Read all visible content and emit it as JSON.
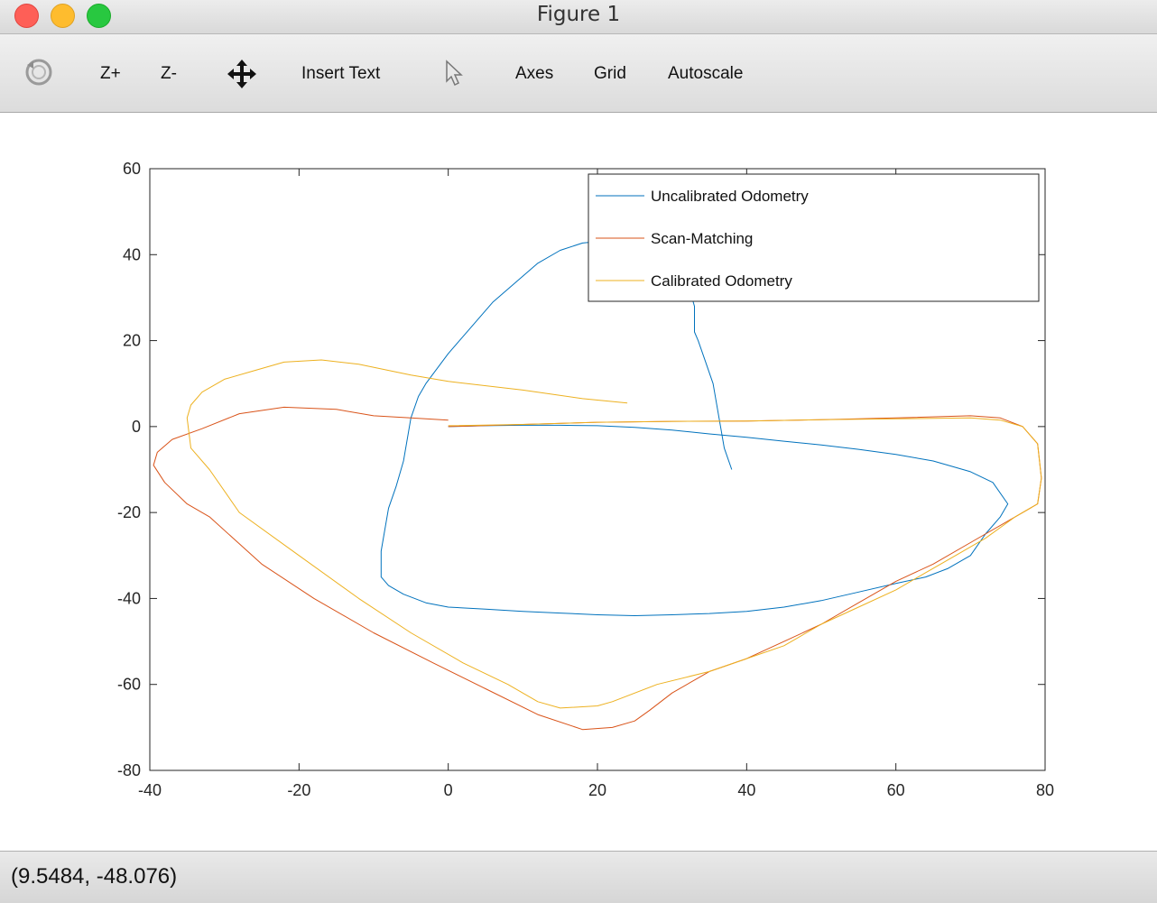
{
  "window": {
    "title": "Figure 1"
  },
  "toolbar": {
    "zoom_in": "Z+",
    "zoom_out": "Z-",
    "insert_text": "Insert Text",
    "axes": "Axes",
    "grid": "Grid",
    "autoscale": "Autoscale"
  },
  "status": {
    "coords": "(9.5484, -48.076)"
  },
  "colors": {
    "uncalibrated": "#0072bd",
    "scan_matching": "#d95319",
    "calibrated": "#edb120"
  },
  "chart_data": {
    "type": "line",
    "title": "",
    "xlabel": "",
    "ylabel": "",
    "xlim": [
      -40,
      80
    ],
    "ylim": [
      -80,
      60
    ],
    "xticks": [
      "-40",
      "-20",
      "0",
      "20",
      "40",
      "60",
      "80"
    ],
    "yticks": [
      "60",
      "40",
      "20",
      "0",
      "-20",
      "-40",
      "-60",
      "-80"
    ],
    "grid": false,
    "legend_position": "top-right",
    "series": [
      {
        "name": "Uncalibrated Odometry",
        "x": [
          0,
          5,
          10,
          15,
          20,
          25,
          30,
          35,
          40,
          45,
          50,
          55,
          60,
          65,
          70,
          73,
          75,
          74,
          72,
          70,
          67,
          64,
          60,
          55,
          50,
          45,
          40,
          35,
          30,
          25,
          20,
          15,
          10,
          5,
          0,
          -3,
          -6,
          -8,
          -9,
          -9,
          -8,
          -7,
          -6,
          -5,
          -4,
          -3,
          0,
          3,
          6,
          9,
          12,
          15,
          18,
          21,
          24,
          27,
          30,
          32,
          33,
          33,
          33.5,
          34.5,
          35.5,
          36.5,
          37,
          38
        ],
        "y": [
          0,
          0.2,
          0.3,
          0.3,
          0.2,
          -0.2,
          -0.8,
          -1.7,
          -2.5,
          -3.4,
          -4.3,
          -5.3,
          -6.5,
          -8,
          -10.5,
          -13,
          -18,
          -21,
          -25,
          -30,
          -33,
          -35,
          -36.5,
          -38.5,
          -40.5,
          -42,
          -43,
          -43.5,
          -43.8,
          -44,
          -43.8,
          -43.4,
          -43,
          -42.5,
          -42,
          -41,
          -39,
          -37,
          -35,
          -29,
          -19,
          -14,
          -8,
          2,
          7,
          10,
          17,
          23,
          29,
          33.5,
          38,
          41,
          42.7,
          43.2,
          43.4,
          42.5,
          39,
          34,
          28,
          22,
          20,
          15,
          10,
          0,
          -5,
          -10
        ]
      },
      {
        "name": "Scan-Matching",
        "x": [
          0,
          10,
          20,
          30,
          40,
          50,
          60,
          70,
          74,
          77,
          79,
          79.5,
          79,
          76,
          70,
          65,
          60,
          55,
          50,
          45,
          40,
          35,
          30,
          27,
          25,
          22,
          18,
          12,
          5,
          -2,
          -10,
          -18,
          -25,
          -32,
          -35,
          -38,
          -39.5,
          -39,
          -37,
          -33,
          -28,
          -22,
          -15,
          -10,
          -5,
          0
        ],
        "y": [
          0,
          0.5,
          1,
          1.2,
          1.3,
          1.6,
          2,
          2.5,
          2,
          0,
          -4,
          -12,
          -18,
          -21,
          -27,
          -32,
          -36,
          -41,
          -46,
          -50,
          -54,
          -57,
          -62,
          -66,
          -68.5,
          -70,
          -70.5,
          -67,
          -61,
          -55,
          -48,
          -40,
          -32,
          -21,
          -18,
          -13,
          -9,
          -6,
          -3,
          -0.5,
          3,
          4.5,
          4,
          2.5,
          2,
          1.5
        ]
      },
      {
        "name": "Calibrated Odometry",
        "x": [
          0,
          10,
          20,
          30,
          40,
          50,
          60,
          70,
          74,
          77,
          79,
          79.5,
          79,
          76,
          72,
          68,
          64,
          60,
          55,
          50,
          45,
          40,
          35,
          28,
          22,
          20,
          15,
          12,
          8,
          2,
          -5,
          -12,
          -20,
          -28,
          -32,
          -34.5,
          -35,
          -34.5,
          -33,
          -30,
          -26,
          -22,
          -17,
          -12,
          -5,
          0,
          10,
          18,
          24
        ],
        "y": [
          0.2,
          0.5,
          1,
          1.2,
          1.3,
          1.6,
          1.8,
          2,
          1.5,
          0,
          -4,
          -12,
          -18,
          -21,
          -26,
          -30,
          -34,
          -38,
          -42,
          -46,
          -51,
          -54,
          -57,
          -60,
          -64,
          -65,
          -65.5,
          -64,
          -60,
          -55,
          -48,
          -40,
          -30,
          -20,
          -10,
          -5,
          2,
          5,
          8,
          11,
          13,
          15,
          15.5,
          14.5,
          12,
          10.5,
          8.5,
          6.5,
          5.5
        ]
      }
    ]
  }
}
